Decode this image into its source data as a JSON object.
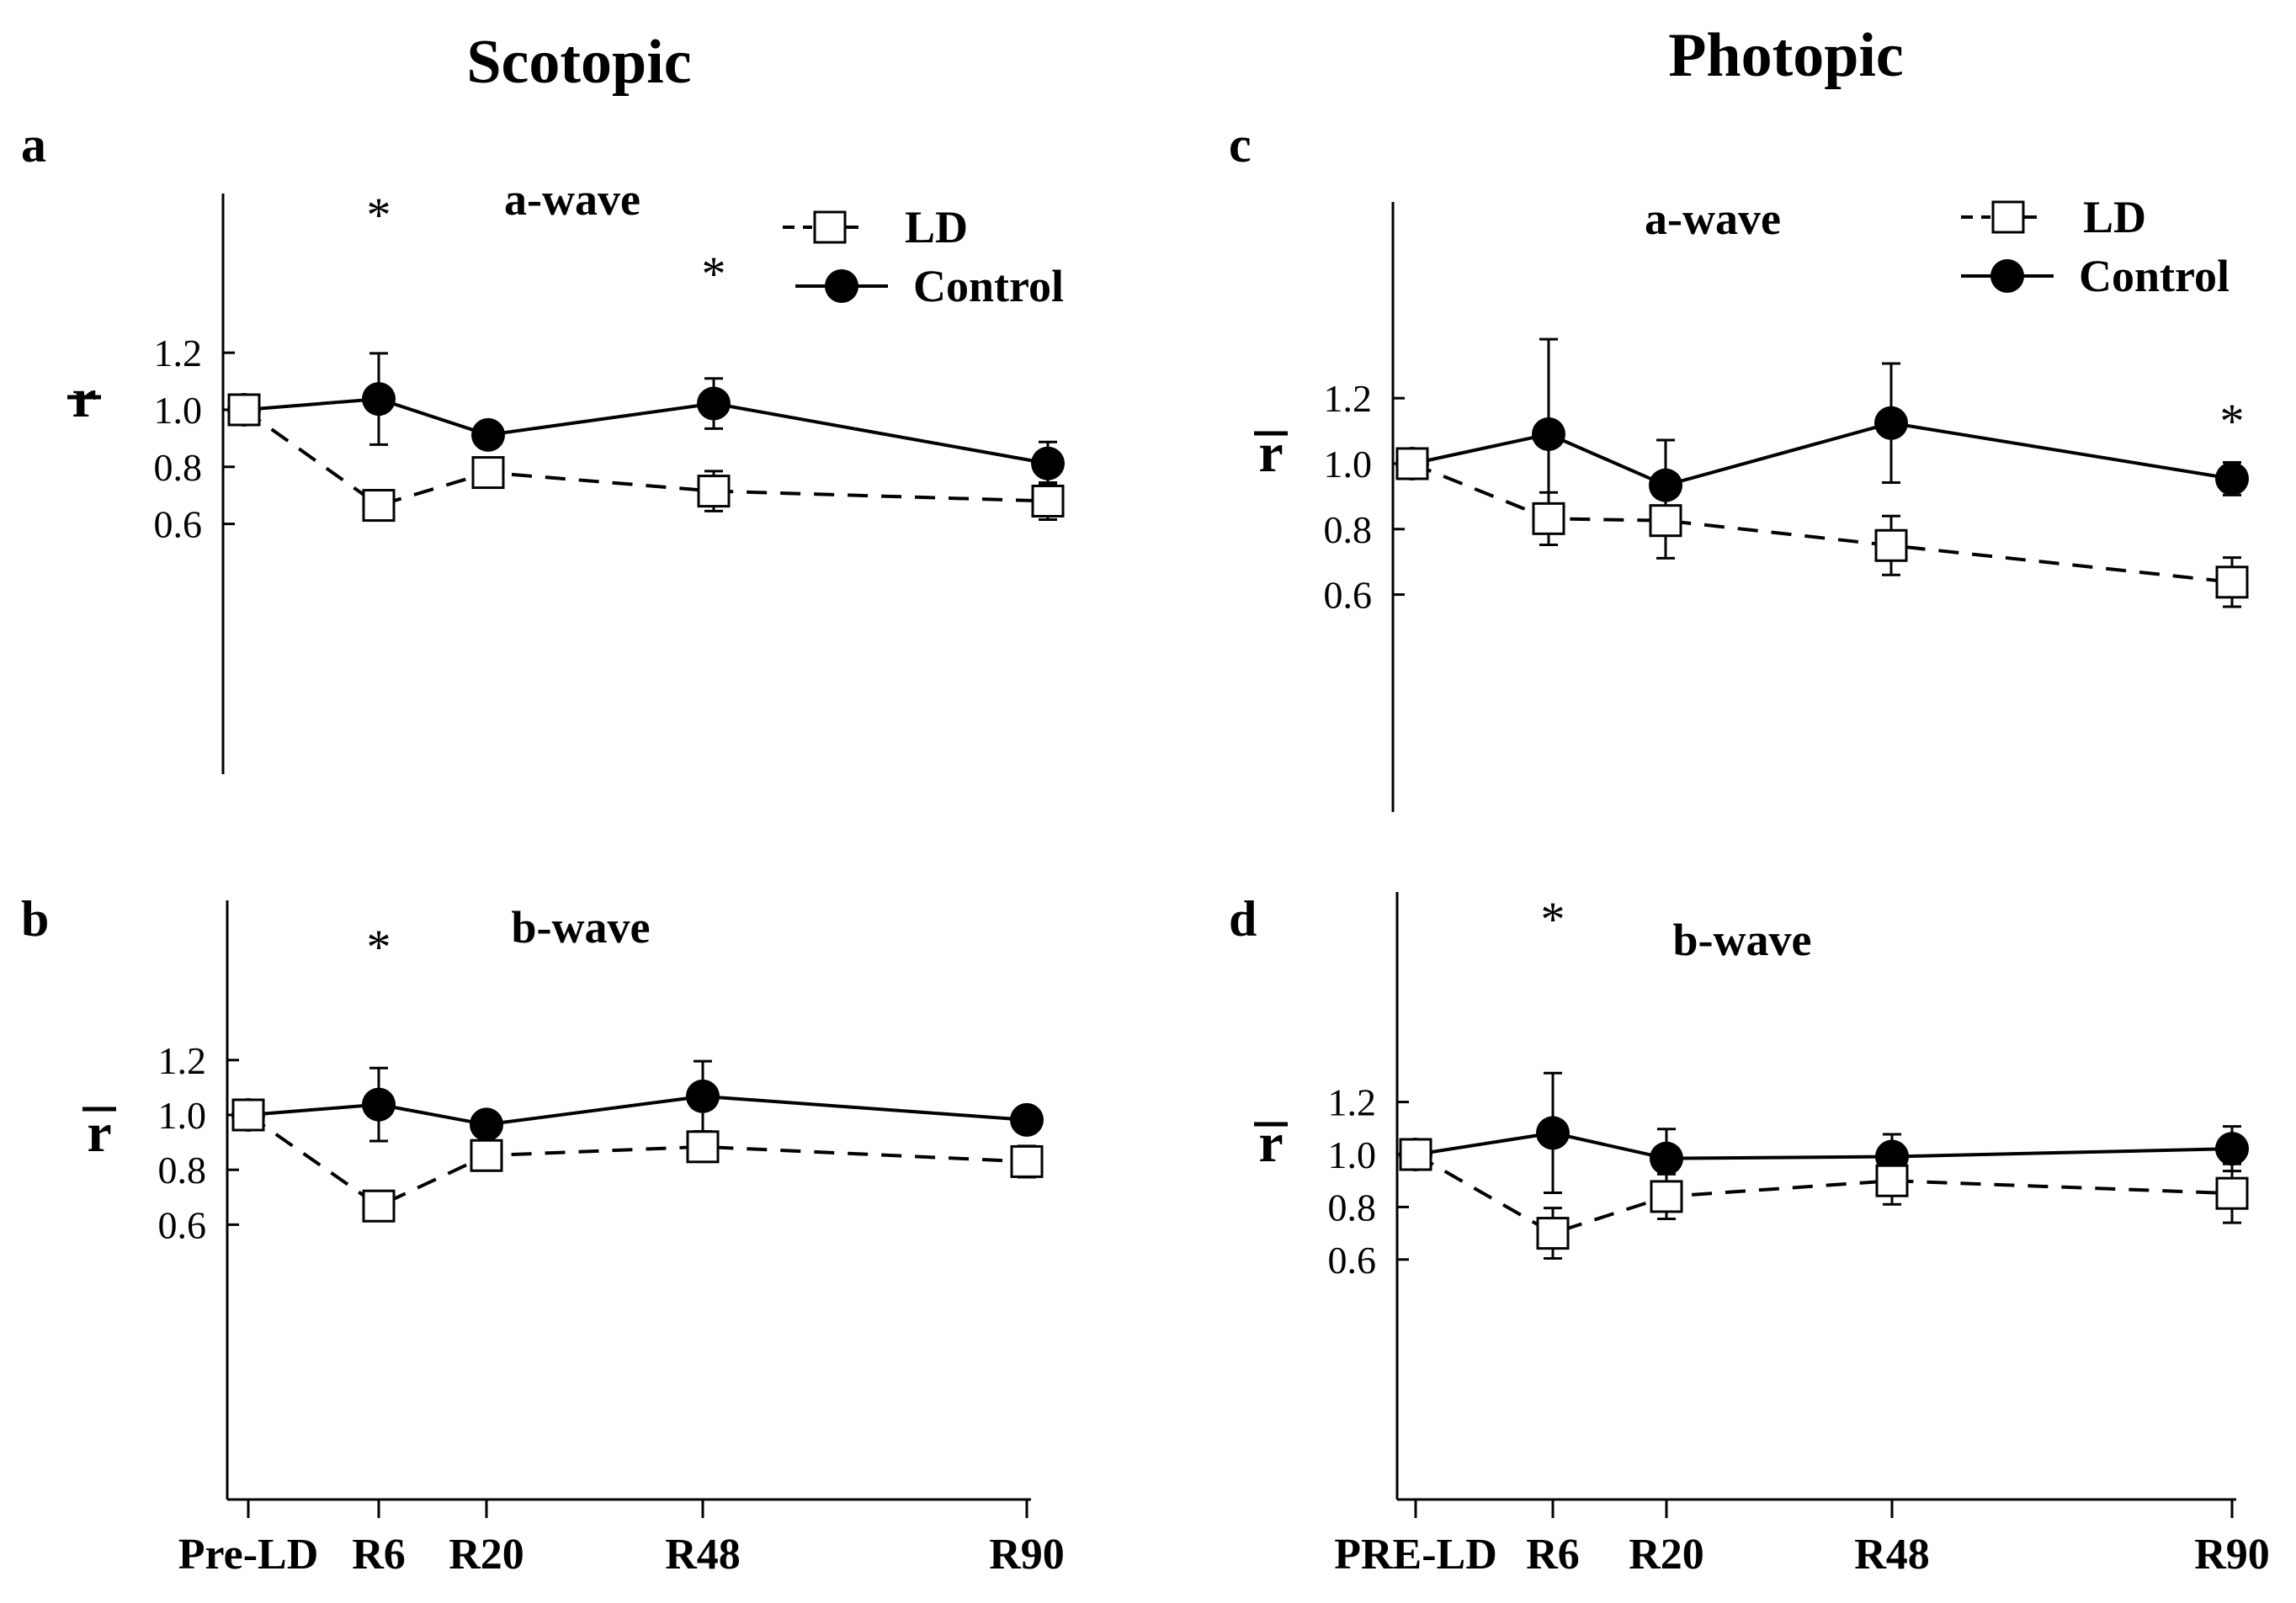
{
  "titles": {
    "scotopic": "Scotopic",
    "photopic": "Photopic"
  },
  "ylabel": "r",
  "legend": {
    "ld": "LD",
    "control": "Control"
  },
  "chart_data": [
    {
      "id": "a",
      "panel_label": "a",
      "type": "line",
      "title": "a-wave",
      "column": "Scotopic",
      "ylabel": "r",
      "categories": [
        "Pre-LD",
        "R6",
        "R20",
        "R48",
        "R90"
      ],
      "yticks": [
        "0.6",
        "0.8",
        "1.0",
        "1.2"
      ],
      "series": [
        {
          "name": "LD",
          "values": [
            1.0,
            0.665,
            0.78,
            0.715,
            0.68
          ],
          "err_up": [
            0.0,
            0.04,
            0.042,
            0.07,
            0.065
          ],
          "err_down": [
            0.0,
            0.042,
            0.04,
            0.07,
            0.065
          ]
        },
        {
          "name": "Control",
          "values": [
            1.0,
            1.038,
            0.912,
            1.022,
            0.812
          ],
          "err_up": [
            0.0,
            0.16,
            0.032,
            0.088,
            0.075
          ],
          "err_down": [
            0.0,
            0.16,
            0.032,
            0.088,
            0.075
          ]
        }
      ],
      "annotations": [
        "*",
        "*"
      ]
    },
    {
      "id": "b",
      "panel_label": "b",
      "type": "line",
      "title": "b-wave",
      "column": "Scotopic",
      "ylabel": "r",
      "categories": [
        "Pre-LD",
        "R6",
        "R20",
        "R48",
        "R90"
      ],
      "yticks": [
        "0.6",
        "0.8",
        "1.0",
        "1.2"
      ],
      "series": [
        {
          "name": "LD",
          "values": [
            1.0,
            0.668,
            0.852,
            0.884,
            0.83
          ],
          "err_up": [
            0.0,
            0.048,
            0.035,
            0.04,
            0.057
          ],
          "err_down": [
            0.0,
            0.048,
            0.035,
            0.04,
            0.057
          ]
        },
        {
          "name": "Control",
          "values": [
            1.0,
            1.038,
            0.965,
            1.068,
            0.982
          ],
          "err_up": [
            0.0,
            0.133,
            0.046,
            0.128,
            0.03
          ],
          "err_down": [
            0.0,
            0.133,
            0.046,
            0.128,
            0.03
          ]
        }
      ],
      "annotations": [
        "*"
      ]
    },
    {
      "id": "c",
      "panel_label": "c",
      "type": "line",
      "title": "a-wave",
      "column": "Photopic",
      "ylabel": "r",
      "categories": [
        "PRE-LD",
        "R6",
        "R20",
        "R48",
        "R90"
      ],
      "yticks": [
        "0.6",
        "0.8",
        "1.0",
        "1.2"
      ],
      "series": [
        {
          "name": "LD",
          "values": [
            1.0,
            0.832,
            0.826,
            0.75,
            0.638
          ],
          "err_up": [
            0.0,
            0.08,
            0.075,
            0.09,
            0.075
          ],
          "err_down": [
            0.0,
            0.08,
            0.115,
            0.09,
            0.075
          ]
        },
        {
          "name": "Control",
          "values": [
            1.0,
            1.09,
            0.934,
            1.124,
            0.954
          ],
          "err_up": [
            0.0,
            0.29,
            0.138,
            0.182,
            0.05
          ],
          "err_down": [
            0.0,
            0.29,
            0.138,
            0.182,
            0.05
          ]
        }
      ],
      "annotations": [
        "*"
      ]
    },
    {
      "id": "d",
      "panel_label": "d",
      "type": "line",
      "title": "b-wave",
      "column": "Photopic",
      "ylabel": "r",
      "categories": [
        "PRE-LD",
        "R6",
        "R20",
        "R48",
        "R90"
      ],
      "yticks": [
        "0.6",
        "0.8",
        "1.0",
        "1.2"
      ],
      "series": [
        {
          "name": "LD",
          "values": [
            1.0,
            0.7,
            0.84,
            0.9,
            0.852
          ],
          "err_up": [
            0.0,
            0.096,
            0.085,
            0.09,
            0.112
          ],
          "err_down": [
            0.0,
            0.096,
            0.085,
            0.09,
            0.112
          ]
        },
        {
          "name": "Control",
          "values": [
            1.0,
            1.082,
            0.985,
            0.992,
            1.022
          ],
          "err_up": [
            0.0,
            0.228,
            0.112,
            0.085,
            0.085
          ],
          "err_down": [
            0.0,
            0.228,
            0.112,
            0.085,
            0.085
          ]
        }
      ],
      "annotations": [
        "*"
      ]
    }
  ]
}
